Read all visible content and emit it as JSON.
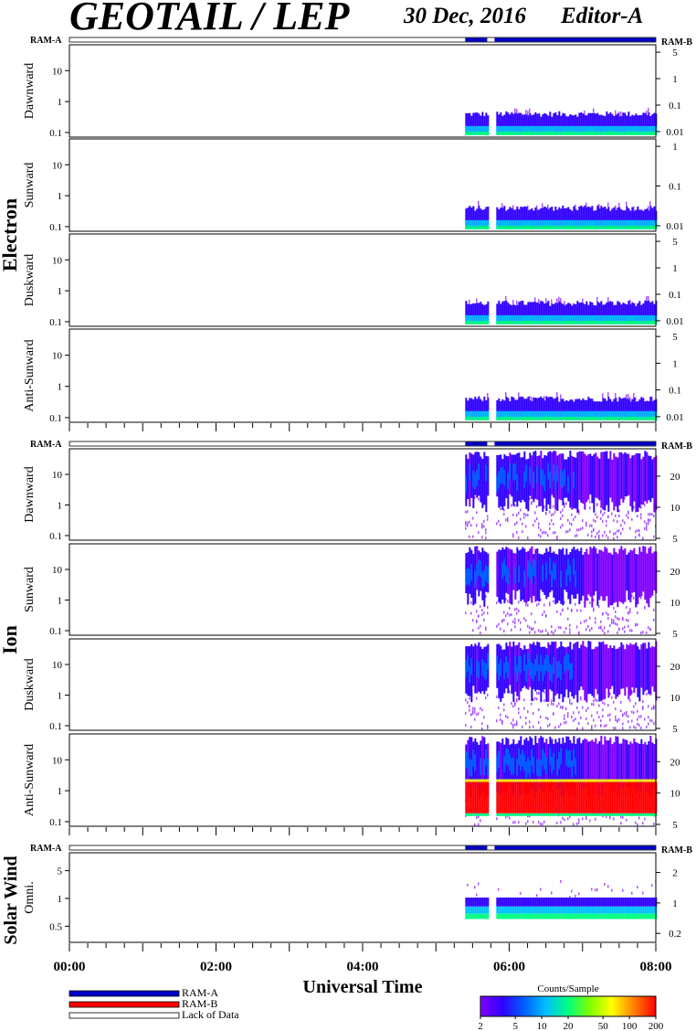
{
  "header": {
    "title": "GEOTAIL / LEP",
    "date": "30 Dec, 2016",
    "editor": "Editor-A"
  },
  "colors": {
    "ram_a": "#0000c8",
    "ram_b": "#ff0000",
    "lack_of_data": "#ffffff",
    "colorbar_stops": [
      "#8000ff",
      "#3000ff",
      "#0060ff",
      "#00c0ff",
      "#00ff80",
      "#80ff00",
      "#ffff00",
      "#ff8000",
      "#ff0000"
    ]
  },
  "chart_data": {
    "type": "heatmap",
    "x_axis": {
      "label": "Universal Time",
      "ticks": [
        "00:00",
        "02:00",
        "04:00",
        "06:00",
        "08:00"
      ],
      "range_hours": [
        0,
        8
      ]
    },
    "groups": [
      {
        "name": "Electron",
        "ram_left": "RAM-A",
        "ram_right": "RAM-B",
        "panels": [
          {
            "label": "Dawnward",
            "left_ticks": [
              "10",
              "1",
              "0.1"
            ],
            "right_ticks": [
              "5",
              "1",
              "0.1",
              "0.01"
            ],
            "data_start_hr": 5.4,
            "gaps": [
              [
                5.7,
                5.8
              ]
            ]
          },
          {
            "label": "Sunward",
            "left_ticks": [
              "10",
              "1",
              "0.1"
            ],
            "right_ticks": [
              "1",
              "0.1",
              "0.01"
            ],
            "data_start_hr": 5.4,
            "gaps": [
              [
                5.7,
                5.8
              ]
            ]
          },
          {
            "label": "Duskward",
            "left_ticks": [
              "10",
              "1",
              "0.1"
            ],
            "right_ticks": [
              "5",
              "1",
              "0.1",
              "0.01"
            ],
            "data_start_hr": 5.4,
            "gaps": [
              [
                5.7,
                5.8
              ]
            ]
          },
          {
            "label": "Anti-Sunward",
            "left_ticks": [
              "10",
              "1",
              "0.1"
            ],
            "right_ticks": [
              "5",
              "1",
              "0.1",
              "0.01"
            ],
            "data_start_hr": 5.4,
            "gaps": [
              [
                5.7,
                5.8
              ]
            ]
          }
        ]
      },
      {
        "name": "Ion",
        "ram_left": "RAM-A",
        "ram_right": "RAM-B",
        "panels": [
          {
            "label": "Dawnward",
            "left_ticks": [
              "10",
              "1",
              "0.1"
            ],
            "right_ticks": [
              "20",
              "10",
              "5"
            ],
            "data_start_hr": 5.4,
            "gaps": [
              [
                5.7,
                5.8
              ]
            ]
          },
          {
            "label": "Sunward",
            "left_ticks": [
              "10",
              "1",
              "0.1"
            ],
            "right_ticks": [
              "20",
              "10",
              "5"
            ],
            "data_start_hr": 5.4,
            "gaps": [
              [
                5.7,
                5.8
              ]
            ]
          },
          {
            "label": "Duskward",
            "left_ticks": [
              "10",
              "1",
              "0.1"
            ],
            "right_ticks": [
              "20",
              "10",
              "5"
            ],
            "data_start_hr": 5.4,
            "gaps": [
              [
                5.7,
                5.8
              ]
            ]
          },
          {
            "label": "Anti-Sunward",
            "left_ticks": [
              "10",
              "1",
              "0.1"
            ],
            "right_ticks": [
              "20",
              "10",
              "5"
            ],
            "data_start_hr": 5.4,
            "gaps": [
              [
                5.7,
                5.8
              ]
            ]
          }
        ]
      },
      {
        "name": "Solar Wind",
        "ram_left": "RAM-A",
        "ram_right": "RAM-B",
        "panels": [
          {
            "label": "Omni.",
            "left_ticks": [
              "5",
              "1",
              "0.5"
            ],
            "right_ticks": [
              "2",
              "1",
              "0.2"
            ],
            "data_start_hr": 5.4,
            "gaps": [
              [
                5.7,
                5.8
              ]
            ]
          }
        ]
      }
    ],
    "ram_bar_segments": [
      [
        5.4,
        5.7
      ],
      [
        5.8,
        8.0
      ]
    ],
    "legend": {
      "items": [
        {
          "label": "RAM-A",
          "color": "#0000c8"
        },
        {
          "label": "RAM-B",
          "color": "#ff0000"
        },
        {
          "label": "Lack of Data",
          "color": "#ffffff"
        }
      ]
    },
    "colorbar": {
      "title": "Counts/Sample",
      "ticks": [
        "2",
        "5",
        "10",
        "20",
        "50",
        "100",
        "200"
      ],
      "scale": "log",
      "range": [
        2,
        200
      ]
    }
  }
}
